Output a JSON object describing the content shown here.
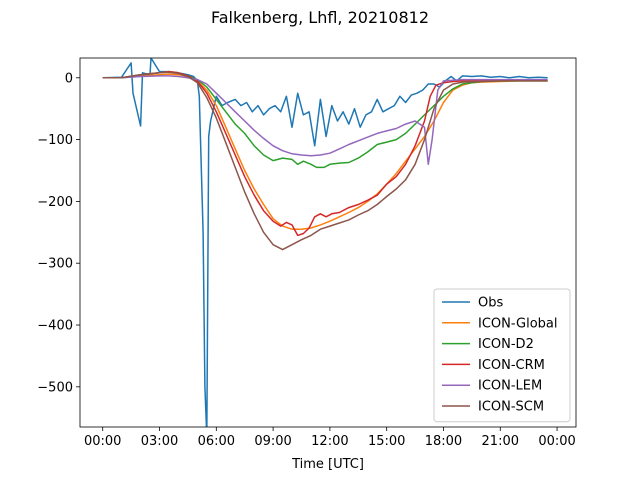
{
  "chart_data": {
    "type": "line",
    "title": "Falkenberg, Lhfl, 20210812",
    "xlabel": "Time [UTC]",
    "ylabel": "",
    "xlim": [
      -1.2,
      25.0
    ],
    "ylim": [
      -565,
      32
    ],
    "x_ticks": [
      0,
      3,
      6,
      9,
      12,
      15,
      18,
      21,
      24
    ],
    "x_tick_labels": [
      "00:00",
      "03:00",
      "06:00",
      "09:00",
      "12:00",
      "15:00",
      "18:00",
      "21:00",
      "00:00"
    ],
    "y_ticks": [
      0,
      -100,
      -200,
      -300,
      -400,
      -500
    ],
    "y_tick_labels": [
      "0",
      "−100",
      "−200",
      "−300",
      "−400",
      "−500"
    ],
    "legend_position": "lower-right",
    "grid": false,
    "series": [
      {
        "name": "Obs",
        "color": "#1f77b4",
        "x": [
          0,
          1.0,
          1.5,
          1.6,
          2.0,
          2.1,
          2.5,
          2.55,
          3.0,
          3.5,
          4.0,
          4.5,
          4.8,
          5.0,
          5.1,
          5.3,
          5.4,
          5.5,
          5.6,
          5.7,
          6.0,
          6.3,
          6.6,
          7.0,
          7.3,
          7.6,
          7.9,
          8.2,
          8.5,
          8.8,
          9.1,
          9.4,
          9.7,
          10.0,
          10.3,
          10.6,
          10.9,
          11.2,
          11.5,
          11.8,
          12.1,
          12.4,
          12.7,
          13.0,
          13.3,
          13.6,
          13.9,
          14.2,
          14.5,
          14.8,
          15.1,
          15.4,
          15.7,
          16.0,
          16.3,
          16.6,
          16.9,
          17.2,
          17.5,
          17.8,
          18.1,
          18.4,
          18.7,
          19.0,
          19.5,
          20.0,
          20.5,
          21.0,
          21.5,
          22.0,
          22.5,
          23.0,
          23.5
        ],
        "values": [
          0,
          1,
          24,
          -25,
          -78,
          8,
          5,
          32,
          10,
          10,
          8,
          5,
          2,
          -5,
          -30,
          -250,
          -500,
          -580,
          -95,
          -70,
          -30,
          -45,
          -40,
          -35,
          -45,
          -40,
          -55,
          -45,
          -60,
          -50,
          -45,
          -55,
          -30,
          -80,
          -25,
          -60,
          -55,
          -110,
          -35,
          -95,
          -45,
          -70,
          -55,
          -75,
          -50,
          -80,
          -60,
          -55,
          -35,
          -55,
          -50,
          -45,
          -30,
          -40,
          -28,
          -25,
          -20,
          -10,
          -10,
          -15,
          -5,
          2,
          -5,
          3,
          2,
          3,
          1,
          2,
          0,
          2,
          0,
          1,
          0
        ]
      },
      {
        "name": "ICON-Global",
        "color": "#ff7f0e",
        "x": [
          0,
          1,
          2,
          3,
          3.5,
          4,
          4.5,
          5,
          5.5,
          6,
          6.5,
          7,
          7.5,
          8,
          8.5,
          9,
          9.5,
          10,
          10.5,
          11,
          11.5,
          12,
          12.5,
          13,
          13.5,
          14,
          14.5,
          15,
          15.5,
          16,
          16.5,
          17,
          17.5,
          18,
          18.5,
          19,
          19.5,
          20,
          21,
          22,
          23,
          23.5
        ],
        "values": [
          0,
          0,
          3,
          5,
          6,
          5,
          2,
          -5,
          -20,
          -45,
          -80,
          -115,
          -150,
          -180,
          -205,
          -228,
          -240,
          -245,
          -245,
          -243,
          -238,
          -232,
          -225,
          -218,
          -210,
          -200,
          -188,
          -172,
          -155,
          -135,
          -115,
          -95,
          -70,
          -40,
          -20,
          -12,
          -8,
          -7,
          -6,
          -5,
          -5,
          -5
        ]
      },
      {
        "name": "ICON-D2",
        "color": "#2ca02c",
        "x": [
          0,
          1,
          2,
          3,
          3.5,
          4,
          4.5,
          5,
          5.5,
          6,
          6.5,
          7,
          7.5,
          8,
          8.5,
          9,
          9.5,
          10,
          10.3,
          10.6,
          11,
          11.3,
          11.7,
          12,
          12.5,
          13,
          13.5,
          14,
          14.5,
          15,
          15.5,
          16,
          16.5,
          17,
          17.5,
          18,
          18.5,
          19,
          20,
          21,
          22,
          23,
          23.5
        ],
        "values": [
          0,
          0,
          5,
          8,
          10,
          7,
          3,
          -3,
          -15,
          -35,
          -55,
          -75,
          -90,
          -110,
          -125,
          -134,
          -130,
          -132,
          -140,
          -135,
          -140,
          -145,
          -145,
          -140,
          -138,
          -137,
          -130,
          -120,
          -108,
          -104,
          -100,
          -90,
          -75,
          -60,
          -45,
          -30,
          -18,
          -10,
          -6,
          -5,
          -5,
          -5,
          -5
        ]
      },
      {
        "name": "ICON-CRM",
        "color": "#d62728",
        "x": [
          0,
          1,
          2,
          3,
          3.5,
          4,
          4.5,
          5,
          5.5,
          6,
          6.5,
          7,
          7.5,
          8,
          8.5,
          9,
          9.4,
          9.7,
          10.0,
          10.3,
          10.6,
          10.9,
          11.2,
          11.5,
          11.8,
          12.1,
          12.5,
          13,
          13.5,
          14,
          14.5,
          15,
          15.5,
          16,
          16.5,
          17,
          17.3,
          17.6,
          18,
          18.5,
          19,
          20,
          21,
          22,
          23,
          23.5
        ],
        "values": [
          0,
          0,
          5,
          8,
          10,
          8,
          3,
          -5,
          -25,
          -55,
          -90,
          -125,
          -160,
          -190,
          -215,
          -232,
          -240,
          -234,
          -238,
          -255,
          -252,
          -243,
          -225,
          -220,
          -225,
          -220,
          -218,
          -210,
          -205,
          -198,
          -190,
          -172,
          -160,
          -140,
          -110,
          -70,
          -30,
          -12,
          -8,
          -6,
          -5,
          -5,
          -4,
          -4,
          -4,
          -4
        ]
      },
      {
        "name": "ICON-LEM",
        "color": "#9467bd",
        "x": [
          0,
          1,
          2,
          3,
          3.5,
          4,
          4.5,
          5,
          5.5,
          6,
          6.5,
          7,
          7.5,
          8,
          8.5,
          9,
          9.5,
          10,
          10.5,
          11,
          11.5,
          12,
          12.5,
          13,
          13.5,
          14,
          14.5,
          15,
          15.5,
          16,
          16.5,
          17,
          17.2,
          17.4,
          17.7,
          18,
          18.5,
          19,
          20,
          21,
          22,
          23,
          23.5
        ],
        "values": [
          0,
          0,
          2,
          3,
          3,
          2,
          0,
          -3,
          -10,
          -25,
          -40,
          -55,
          -70,
          -85,
          -98,
          -110,
          -118,
          -123,
          -125,
          -126,
          -125,
          -122,
          -115,
          -108,
          -102,
          -96,
          -90,
          -86,
          -82,
          -75,
          -70,
          -80,
          -140,
          -100,
          -20,
          -5,
          -4,
          -3,
          -3,
          -3,
          -3,
          -3,
          -3
        ]
      },
      {
        "name": "ICON-SCM",
        "color": "#8c564b",
        "x": [
          0,
          1,
          2,
          3,
          3.5,
          4,
          4.5,
          5,
          5.5,
          6,
          6.5,
          7,
          7.5,
          8,
          8.5,
          9,
          9.5,
          10,
          10.5,
          11,
          11.5,
          12,
          12.5,
          13,
          13.5,
          14,
          14.5,
          15,
          15.5,
          16,
          16.5,
          17,
          17.5,
          18,
          18.5,
          19,
          20,
          21,
          22,
          23,
          23.5
        ],
        "values": [
          0,
          0,
          5,
          8,
          9,
          7,
          2,
          -8,
          -32,
          -65,
          -105,
          -145,
          -185,
          -220,
          -250,
          -270,
          -278,
          -270,
          -262,
          -255,
          -245,
          -240,
          -235,
          -230,
          -222,
          -215,
          -205,
          -192,
          -180,
          -165,
          -140,
          -100,
          -50,
          -20,
          -10,
          -7,
          -6,
          -5,
          -5,
          -5,
          -5
        ]
      }
    ]
  }
}
